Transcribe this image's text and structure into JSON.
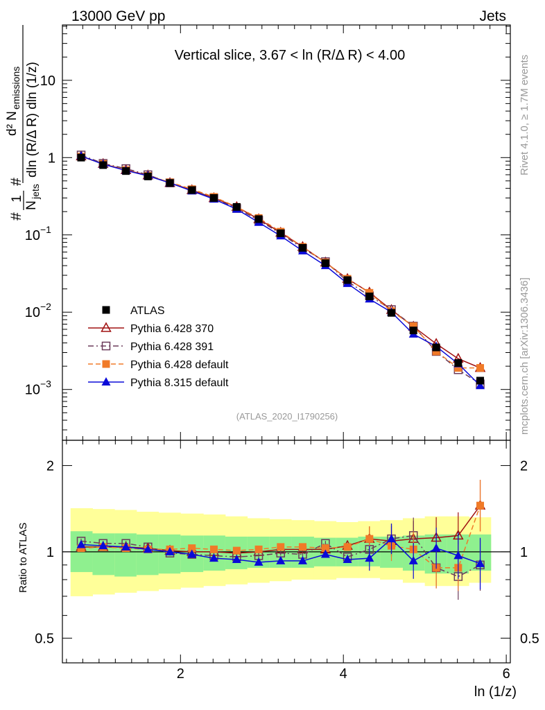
{
  "header": {
    "left": "13000 GeV pp",
    "right": "Jets"
  },
  "side_labels": {
    "rivet": "Rivet 4.1.0, ≥ 1.7M events",
    "mcplots": "mcplots.cern.ch [arXiv:1306.3436]"
  },
  "watermark": "(ATLAS_2020_I1790256)",
  "chart_data": {
    "type": "line",
    "title": "Vertical slice, 3.67 < ln (R/Δ R) < 4.00",
    "xlabel": "ln (1/z)",
    "ylabel": "#1/N_jets #d² N_emissions/dln (R/Δ R) dln (1/z)",
    "xlim": [
      0.55,
      6.05
    ],
    "x_ticks": [
      2,
      4,
      6
    ],
    "x_tick_labels": [
      "2",
      "4",
      "6"
    ],
    "main": {
      "yscale": "log",
      "ylim": [
        0.00022,
        52
      ],
      "y_ticks": [
        0.001,
        0.01,
        0.1,
        1,
        10
      ],
      "y_tick_base": "10",
      "y_tick_exps": [
        "−3",
        "−2",
        "−1",
        "",
        ""
      ],
      "y_tick_plain": [
        "",
        "",
        "",
        "1",
        "10"
      ]
    },
    "ratio": {
      "ylabel": "Ratio to ATLAS",
      "yscale": "log",
      "ylim": [
        0.41,
        2.45
      ],
      "y_ticks": [
        0.5,
        1,
        2
      ],
      "y_tick_labels": [
        "0.5",
        "1",
        "2"
      ]
    },
    "x": [
      0.78,
      1.05,
      1.33,
      1.6,
      1.87,
      2.14,
      2.41,
      2.69,
      2.96,
      3.23,
      3.5,
      3.78,
      4.05,
      4.32,
      4.59,
      4.86,
      5.14,
      5.41,
      5.68
    ],
    "bin_edges": [
      0.65,
      0.92,
      1.19,
      1.46,
      1.73,
      2.0,
      2.28,
      2.55,
      2.82,
      3.09,
      3.36,
      3.64,
      3.91,
      4.18,
      4.45,
      4.73,
      5.0,
      5.27,
      5.54,
      5.81
    ],
    "band_inner": [
      [
        0.85,
        1.18
      ],
      [
        0.83,
        1.16
      ],
      [
        0.82,
        1.16
      ],
      [
        0.83,
        1.15
      ],
      [
        0.84,
        1.15
      ],
      [
        0.85,
        1.14
      ],
      [
        0.86,
        1.14
      ],
      [
        0.87,
        1.13
      ],
      [
        0.88,
        1.13
      ],
      [
        0.88,
        1.13
      ],
      [
        0.88,
        1.13
      ],
      [
        0.89,
        1.12
      ],
      [
        0.89,
        1.12
      ],
      [
        0.89,
        1.13
      ],
      [
        0.88,
        1.13
      ],
      [
        0.86,
        1.14
      ],
      [
        0.84,
        1.15
      ],
      [
        0.84,
        1.15
      ],
      [
        0.86,
        1.15
      ]
    ],
    "band_outer": [
      [
        0.7,
        1.42
      ],
      [
        0.71,
        1.41
      ],
      [
        0.72,
        1.4
      ],
      [
        0.73,
        1.38
      ],
      [
        0.74,
        1.37
      ],
      [
        0.75,
        1.36
      ],
      [
        0.76,
        1.35
      ],
      [
        0.77,
        1.33
      ],
      [
        0.78,
        1.31
      ],
      [
        0.79,
        1.3
      ],
      [
        0.8,
        1.29
      ],
      [
        0.8,
        1.28
      ],
      [
        0.81,
        1.27
      ],
      [
        0.81,
        1.28
      ],
      [
        0.8,
        1.29
      ],
      [
        0.78,
        1.31
      ],
      [
        0.76,
        1.33
      ],
      [
        0.76,
        1.33
      ],
      [
        0.78,
        1.32
      ]
    ],
    "series": [
      {
        "name": "ATLAS",
        "color": "#000000",
        "marker": "square-filled",
        "line": "none",
        "values": [
          1.0,
          0.8,
          0.67,
          0.57,
          0.47,
          0.38,
          0.3,
          0.23,
          0.16,
          0.105,
          0.068,
          0.043,
          0.026,
          0.016,
          0.0098,
          0.0058,
          0.0035,
          0.0022,
          0.0013
        ],
        "ratio": [
          1,
          1,
          1,
          1,
          1,
          1,
          1,
          1,
          1,
          1,
          1,
          1,
          1,
          1,
          1,
          1,
          1,
          1,
          1
        ]
      },
      {
        "name": "Pythia 6.428 370",
        "color": "#a01010",
        "marker": "triangle-open",
        "line": "solid",
        "values": [
          1.04,
          0.83,
          0.69,
          0.59,
          0.47,
          0.38,
          0.3,
          0.23,
          0.16,
          0.107,
          0.07,
          0.044,
          0.027,
          0.018,
          0.0107,
          0.0065,
          0.0039,
          0.0025,
          0.0019
        ],
        "ratio": [
          1.04,
          1.04,
          1.04,
          1.03,
          1.01,
          1.0,
          1.0,
          0.99,
          1.0,
          1.02,
          1.02,
          1.02,
          1.05,
          1.11,
          1.09,
          1.11,
          1.12,
          1.14,
          1.45
        ]
      },
      {
        "name": "Pythia 6.428 391",
        "color": "#6b3a5a",
        "marker": "square-open",
        "line": "dashdot",
        "values": [
          1.08,
          0.84,
          0.72,
          0.6,
          0.47,
          0.38,
          0.3,
          0.22,
          0.155,
          0.104,
          0.067,
          0.045,
          0.025,
          0.0163,
          0.0108,
          0.0066,
          0.0031,
          0.0018,
          0.00118
        ],
        "ratio": [
          1.09,
          1.07,
          1.07,
          1.04,
          0.99,
          0.98,
          0.97,
          0.96,
          0.97,
          0.99,
          0.98,
          1.07,
          0.96,
          1.02,
          1.11,
          1.14,
          0.88,
          0.82,
          0.9
        ]
      },
      {
        "name": "Pythia 6.428 default",
        "color": "#f07a28",
        "marker": "square-filled",
        "line": "dashed",
        "values": [
          1.03,
          0.83,
          0.69,
          0.58,
          0.48,
          0.39,
          0.31,
          0.23,
          0.165,
          0.11,
          0.07,
          0.044,
          0.027,
          0.0178,
          0.0103,
          0.0066,
          0.0031,
          0.0019,
          0.0019
        ],
        "ratio": [
          1.03,
          1.04,
          1.03,
          1.02,
          1.02,
          1.03,
          1.02,
          1.01,
          1.02,
          1.04,
          1.04,
          1.03,
          1.04,
          1.11,
          1.05,
          1.02,
          0.88,
          0.88,
          1.45
        ]
      },
      {
        "name": "Pythia 8.315 default",
        "color": "#0a0ad8",
        "marker": "triangle-filled",
        "line": "solid",
        "values": [
          1.05,
          0.82,
          0.68,
          0.58,
          0.47,
          0.37,
          0.29,
          0.215,
          0.145,
          0.097,
          0.062,
          0.04,
          0.0235,
          0.0148,
          0.01,
          0.0052,
          0.0036,
          0.00215,
          0.00112
        ],
        "ratio": [
          1.06,
          1.05,
          1.04,
          1.02,
          1.0,
          0.98,
          0.95,
          0.94,
          0.92,
          0.93,
          0.93,
          0.98,
          0.94,
          0.95,
          1.11,
          0.93,
          1.03,
          0.97,
          0.91
        ]
      }
    ]
  }
}
